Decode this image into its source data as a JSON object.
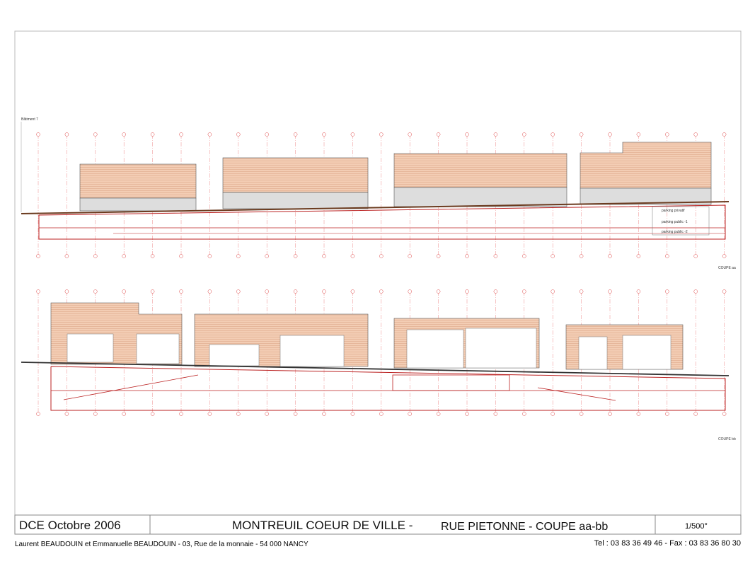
{
  "drawing": {
    "section_aa": {
      "building_label": "Bâtiment 7",
      "parking_labels": [
        "parking privatif",
        "parking public -1",
        "parking public -2"
      ],
      "caption": "COUPE aa"
    },
    "section_bb": {
      "caption": "COUPE bb"
    }
  },
  "title_block": {
    "phase": "DCE Octobre 2006",
    "project": "MONTREUIL  COEUR DE VILLE -",
    "sheet": "RUE PIETONNE - COUPE aa-bb",
    "scale": "1/500°",
    "architects": "Laurent BEAUDOUIN et Emmanuelle BEAUDOUIN - 03, Rue de la monnaie - 54 000  NANCY",
    "contact": "Tel : 03 83 36 49 46 - Fax : 03 83 36 80 30"
  }
}
